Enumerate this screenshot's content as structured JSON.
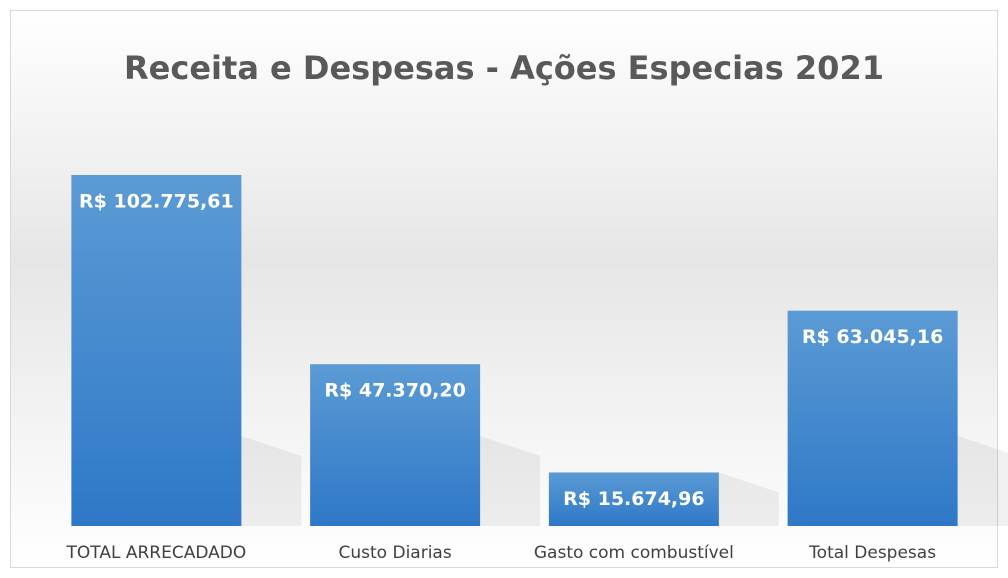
{
  "chart_data": {
    "type": "bar",
    "title": "Receita e Despesas - Ações Especias 2021",
    "categories": [
      "TOTAL ARRECADADO",
      "Custo Diarias",
      "Gasto com combustível",
      "Total Despesas"
    ],
    "values": [
      102775.61,
      47370.2,
      15674.96,
      63045.16
    ],
    "value_labels": [
      "R$ 102.775,61",
      "R$ 47.370,20",
      "R$ 15.674,96",
      "R$ 63.045,16"
    ],
    "color": "#4a8fd6"
  }
}
